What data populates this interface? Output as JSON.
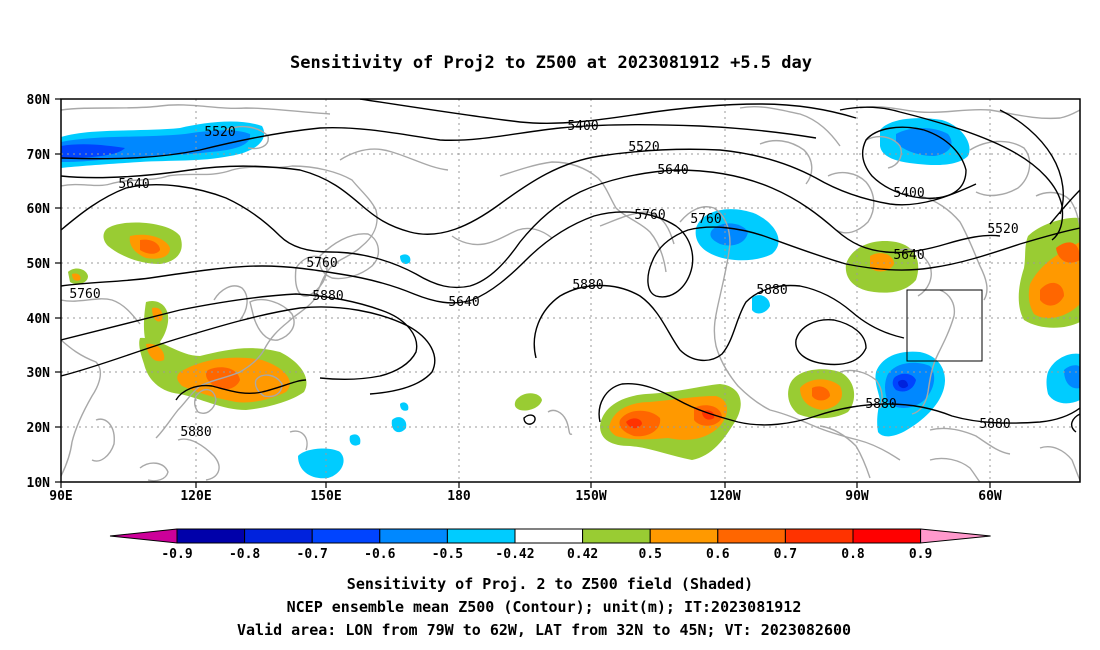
{
  "title": "Sensitivity of Proj2 to Z500 at 2023081912 +5.5 day",
  "map": {
    "lat_labels": [
      "80N",
      "70N",
      "60N",
      "50N",
      "40N",
      "30N",
      "20N",
      "10N"
    ],
    "lon_labels": [
      "90E",
      "120E",
      "150E",
      "180",
      "150W",
      "120W",
      "90W",
      "60W"
    ],
    "contour_labels": [
      "5520",
      "5400",
      "5520",
      "5640",
      "5640",
      "5760",
      "5760",
      "5400",
      "5520",
      "5640",
      "5760",
      "5880",
      "5640",
      "5880",
      "5880",
      "5760",
      "5880",
      "5880",
      "5880"
    ],
    "valid_box": {
      "lon_from": "79W",
      "lon_to": "62W",
      "lat_from": "32N",
      "lat_to": "45N"
    }
  },
  "colorbar": {
    "labels": [
      "-0.9",
      "-0.8",
      "-0.7",
      "-0.6",
      "-0.5",
      "-0.42",
      "0.42",
      "0.5",
      "0.6",
      "0.7",
      "0.8",
      "0.9"
    ],
    "colors": [
      "#cc0099",
      "#0000aa",
      "#0022dd",
      "#0044ff",
      "#0088ff",
      "#00ccff",
      "#ffffff",
      "#99cc33",
      "#ff9900",
      "#ff6600",
      "#ff3300",
      "#ff0000",
      "#ff99cc"
    ]
  },
  "captions": [
    "Sensitivity of Proj. 2 to Z500 field (Shaded)",
    "NCEP ensemble mean Z500 (Contour); unit(m); IT:2023081912",
    "Valid area: LON from 79W to 62W, LAT from 32N to 45N; VT: 2023082600"
  ]
}
